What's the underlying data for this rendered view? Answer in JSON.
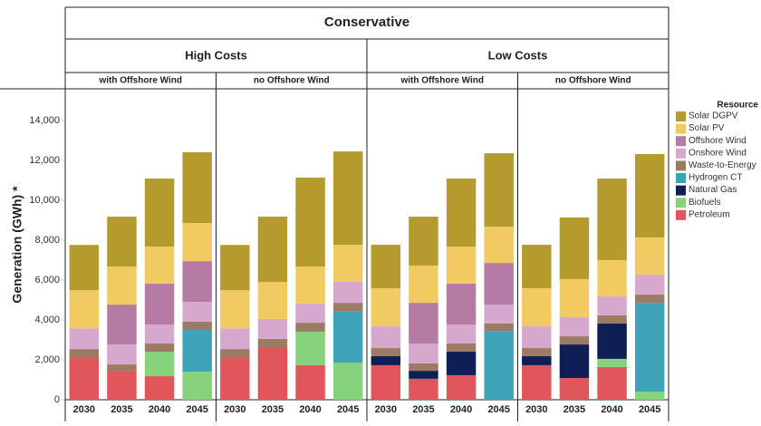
{
  "chart_data": {
    "type": "bar",
    "stacked": true,
    "title": "Conservative",
    "y_label": "Generation (GWh) *",
    "ylim": [
      0,
      14000
    ],
    "yticks": [
      0,
      {
        "value": 2000,
        "label": "2,000"
      },
      {
        "value": 4000,
        "label": "4,000"
      },
      {
        "value": 6000,
        "label": "6,000"
      },
      {
        "value": 8000,
        "label": "8,000"
      },
      {
        "value": 10000,
        "label": "10,000"
      },
      {
        "value": 12000,
        "label": "12,000"
      },
      {
        "value": 14000,
        "label": "14,000"
      }
    ],
    "categories": [
      "2030",
      "2035",
      "2040",
      "2045"
    ],
    "legend_title": "Resource",
    "series": [
      {
        "name": "Solar DGPV",
        "color": "#b59a2e"
      },
      {
        "name": "Solar PV",
        "color": "#f1cb62"
      },
      {
        "name": "Offshore Wind",
        "color": "#b57ba5"
      },
      {
        "name": "Onshore Wind",
        "color": "#d7a8ce"
      },
      {
        "name": "Waste-to-Energy",
        "color": "#9c7b64"
      },
      {
        "name": "Hydrogen CT",
        "color": "#3fa3b7"
      },
      {
        "name": "Natural Gas",
        "color": "#0f1f55"
      },
      {
        "name": "Biofuels",
        "color": "#86d27d"
      },
      {
        "name": "Petroleum",
        "color": "#e0565a"
      }
    ],
    "groups": [
      {
        "label": "High Costs",
        "panels": [
          {
            "subtitle": "with Offshore Wind",
            "values": [
              [
                2270,
                2500,
                3410,
                3550
              ],
              [
                1910,
                1910,
                1860,
                1910
              ],
              [
                0,
                2000,
                2050,
                2040
              ],
              [
                1040,
                1000,
                950,
                1000
              ],
              [
                450,
                320,
                410,
                410
              ],
              [
                0,
                0,
                0,
                2090
              ],
              [
                0,
                0,
                0,
                0
              ],
              [
                0,
                0,
                1230,
                1410
              ],
              [
                2090,
                1450,
                1180,
                0
              ]
            ]
          },
          {
            "subtitle": "no Offshore Wind",
            "values": [
              [
                2270,
                3270,
                4460,
                4680
              ],
              [
                1910,
                1860,
                1860,
                1860
              ],
              [
                0,
                0,
                0,
                0
              ],
              [
                1040,
                1000,
                960,
                1050
              ],
              [
                450,
                460,
                450,
                410
              ],
              [
                0,
                0,
                0,
                2590
              ],
              [
                0,
                0,
                0,
                0
              ],
              [
                0,
                0,
                1680,
                1860
              ],
              [
                2090,
                2590,
                1730,
                0
              ]
            ]
          }
        ]
      },
      {
        "label": "Low Costs",
        "panels": [
          {
            "subtitle": "with Offshore Wind",
            "values": [
              [
                2180,
                2450,
                3410,
                3680
              ],
              [
                1910,
                1870,
                1860,
                1820
              ],
              [
                0,
                2040,
                2050,
                2090
              ],
              [
                1090,
                1000,
                950,
                950
              ],
              [
                410,
                370,
                410,
                370
              ],
              [
                0,
                0,
                0,
                3450
              ],
              [
                450,
                400,
                1180,
                0
              ],
              [
                0,
                0,
                0,
                0
              ],
              [
                1730,
                1050,
                1230,
                0
              ]
            ]
          },
          {
            "subtitle": "no Offshore Wind",
            "values": [
              [
                2180,
                3090,
                4090,
                4180
              ],
              [
                1910,
                1910,
                1820,
                1870
              ],
              [
                0,
                0,
                0,
                0
              ],
              [
                1090,
                960,
                950,
                1000
              ],
              [
                410,
                410,
                410,
                410
              ],
              [
                0,
                0,
                0,
                4450
              ],
              [
                450,
                1680,
                1770,
                0
              ],
              [
                0,
                0,
                410,
                410
              ],
              [
                1730,
                1090,
                1640,
                0
              ]
            ]
          }
        ]
      }
    ]
  }
}
